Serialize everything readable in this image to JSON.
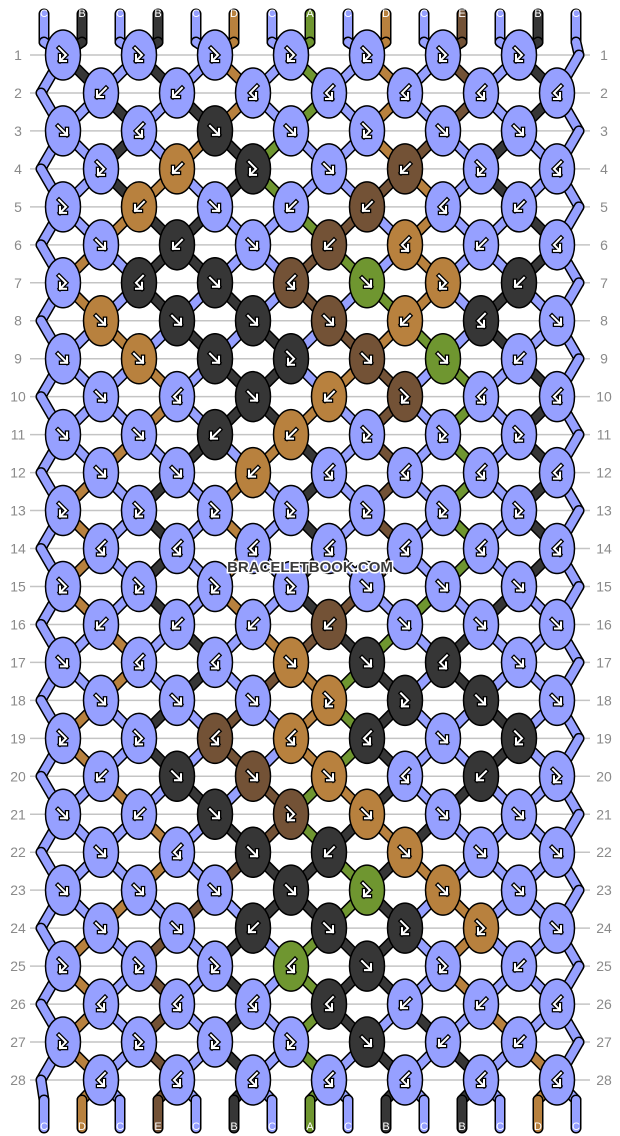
{
  "watermark": "BRACELETBOOK.COM",
  "colors": {
    "A": "#6f9630",
    "B": "#363636",
    "C": "#96a0ff",
    "D": "#b8813e",
    "E": "#735236"
  },
  "strands_top": [
    "C",
    "B",
    "C",
    "B",
    "C",
    "D",
    "C",
    "A",
    "C",
    "D",
    "C",
    "E",
    "C",
    "B",
    "C"
  ],
  "strands_bottom": [
    "C",
    "D",
    "C",
    "E",
    "C",
    "B",
    "C",
    "A",
    "C",
    "B",
    "C",
    "B",
    "C",
    "D",
    "C"
  ],
  "row_numbers": [
    1,
    2,
    3,
    4,
    5,
    6,
    7,
    8,
    9,
    10,
    11,
    12,
    13,
    14,
    15,
    16,
    17,
    18,
    19,
    20,
    21,
    22,
    23,
    24,
    25,
    26,
    27,
    28
  ],
  "knot_legend": {
    "f": "forward",
    "b": "backward",
    "fb": "forward-backward",
    "bf": "backward-forward"
  },
  "rows": [
    [
      "C fb",
      "C fb",
      "C fb",
      "C fb",
      "C fb",
      "C fb",
      "C fb"
    ],
    [
      "C b",
      "C b",
      "C bf",
      "C bf",
      "C bf",
      "C bf",
      "C bf"
    ],
    [
      "C f",
      "C bf",
      "B f",
      "C f",
      "C fb",
      "C f",
      "C f"
    ],
    [
      "C fb",
      "D b",
      "B fb",
      "C f",
      "E b",
      "C fb",
      "C bf"
    ],
    [
      "C fb",
      "D b",
      "C f",
      "C b",
      "E b",
      "C bf",
      "C b"
    ],
    [
      "C f",
      "B b",
      "C f",
      "E b",
      "D bf",
      "C b",
      "C bf"
    ],
    [
      "C fb",
      "B bf",
      "B f",
      "E bf",
      "A f",
      "D fb",
      "B b"
    ],
    [
      "D f",
      "B f",
      "B f",
      "E f",
      "D b",
      "B bf",
      "C f"
    ],
    [
      "C f",
      "D f",
      "B f",
      "B fb",
      "E f",
      "A f",
      "C b"
    ],
    [
      "C f",
      "C bf",
      "B f",
      "D b",
      "E fb",
      "C bf",
      "C bf"
    ],
    [
      "C f",
      "C f",
      "B b",
      "D b",
      "C fb",
      "C fb",
      "C fb"
    ],
    [
      "C f",
      "C f",
      "D b",
      "C bf",
      "C bf",
      "C bf",
      "C bf"
    ],
    [
      "C fb",
      "C fb",
      "C fb",
      "C fb",
      "C fb",
      "C fb",
      "C fb"
    ],
    [
      "C bf",
      "C bf",
      "C bf",
      "C bf",
      "C bf",
      "C bf",
      "C bf"
    ],
    [
      "C fb",
      "C fb",
      "C fb",
      "C fb",
      "C f",
      "C f",
      "C f"
    ],
    [
      "C b",
      "C b",
      "C b",
      "E b",
      "C f",
      "C f",
      "C f"
    ],
    [
      "C f",
      "C bf",
      "C bf",
      "D f",
      "B f",
      "B bf",
      "C f"
    ],
    [
      "C f",
      "C f",
      "C f",
      "D fb",
      "B fb",
      "B f",
      "C f"
    ],
    [
      "C fb",
      "C fb",
      "E bf",
      "D bf",
      "B bf",
      "C f",
      "B fb"
    ],
    [
      "C b",
      "B f",
      "E f",
      "D f",
      "C bf",
      "B b",
      "C fb"
    ],
    [
      "C f",
      "C b",
      "B f",
      "E fb",
      "D f",
      "C f",
      "C f"
    ],
    [
      "C f",
      "C bf",
      "B f",
      "B b",
      "D f",
      "C f",
      "C f"
    ],
    [
      "C f",
      "C f",
      "C f",
      "B f",
      "A fb",
      "D f",
      "C f"
    ],
    [
      "C f",
      "C f",
      "B b",
      "B f",
      "B fb",
      "D fb",
      "C f"
    ],
    [
      "C fb",
      "C fb",
      "C fb",
      "A bf",
      "B f",
      "C fb",
      "C b"
    ],
    [
      "C bf",
      "C bf",
      "C bf",
      "B bf",
      "C b",
      "C b",
      "C bf"
    ],
    [
      "C fb",
      "C fb",
      "C fb",
      "C fb",
      "B f",
      "C b",
      "C b"
    ],
    [
      "C bf",
      "C bf",
      "C bf",
      "C bf",
      "C bf",
      "C bf",
      "C bf"
    ]
  ]
}
